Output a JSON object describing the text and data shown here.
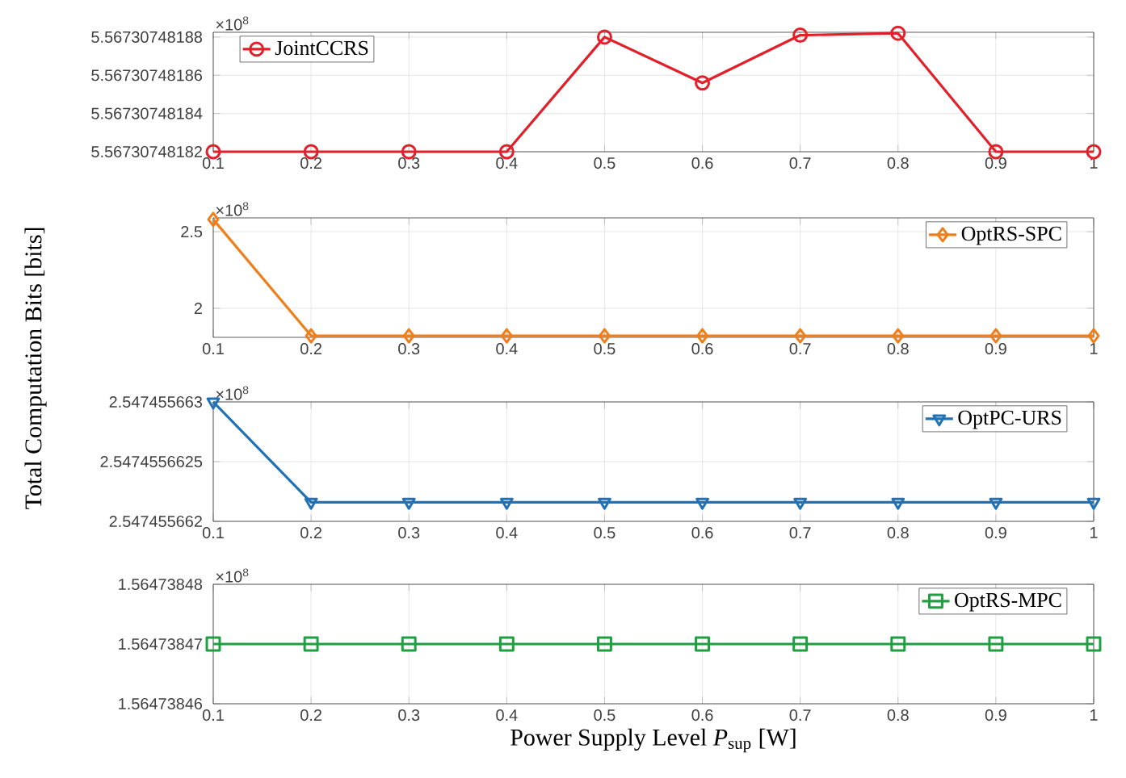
{
  "chart_data": [
    {
      "type": "line",
      "x": [
        0.1,
        0.2,
        0.3,
        0.4,
        0.5,
        0.6,
        0.7,
        0.8,
        0.9,
        1
      ],
      "ylabel": "Total Computation Bits [bits]",
      "series": [
        {
          "name": "JointCCRS",
          "color": "#e3202a",
          "values": [
            5.56730748182,
            5.56730748182,
            5.56730748182,
            5.56730748182,
            5.56730748188,
            5.567307481856,
            5.567307481881,
            5.567307481882,
            5.56730748182,
            5.56730748182
          ]
        }
      ],
      "marker": "circle",
      "xlim": [
        0.1,
        1
      ],
      "xticks": [
        0.1,
        0.2,
        0.3,
        0.4,
        0.5,
        0.6,
        0.7,
        0.8,
        0.9,
        1
      ],
      "ylim": [
        5.56730748182,
        5.5673074818825
      ],
      "yticks": [
        5.56730748182,
        5.56730748184,
        5.56730748186,
        5.56730748188
      ],
      "annotations": [
        "×10$^{8}$"
      ],
      "grid": true,
      "legend": "top left"
    },
    {
      "type": "line",
      "x": [
        0.1,
        0.2,
        0.3,
        0.4,
        0.5,
        0.6,
        0.7,
        0.8,
        0.9,
        1
      ],
      "series": [
        {
          "name": "OptRS-SPC",
          "color": "#f07f1a",
          "values": [
            2.58,
            1.82,
            1.82,
            1.82,
            1.82,
            1.82,
            1.82,
            1.82,
            1.82,
            1.82
          ]
        }
      ],
      "marker": "diamond",
      "xlim": [
        0.1,
        1
      ],
      "xticks": [
        0.1,
        0.2,
        0.3,
        0.4,
        0.5,
        0.6,
        0.7,
        0.8,
        0.9,
        1
      ],
      "ylim": [
        1.81,
        2.59
      ],
      "yticks": [
        2,
        2.5
      ],
      "annotations": [
        "×10$^{8}$"
      ],
      "grid": true,
      "legend": "top right"
    },
    {
      "type": "line",
      "x": [
        0.1,
        0.2,
        0.3,
        0.4,
        0.5,
        0.6,
        0.7,
        0.8,
        0.9,
        1
      ],
      "series": [
        {
          "name": "OptPC-URS",
          "color": "#1f72b8",
          "values": [
            2.547455663,
            2.54745566216,
            2.54745566216,
            2.54745566216,
            2.54745566216,
            2.54745566216,
            2.54745566216,
            2.54745566216,
            2.54745566216,
            2.54745566216
          ]
        }
      ],
      "marker": "triangle",
      "xlim": [
        0.1,
        1
      ],
      "xticks": [
        0.1,
        0.2,
        0.3,
        0.4,
        0.5,
        0.6,
        0.7,
        0.8,
        0.9,
        1
      ],
      "ylim": [
        2.547455662,
        2.547455663
      ],
      "yticks": [
        2.547455662,
        2.5474556625,
        2.547455663
      ],
      "annotations": [
        "×10$^{8}$"
      ],
      "grid": true,
      "legend": "top right"
    },
    {
      "type": "line",
      "x": [
        0.1,
        0.2,
        0.3,
        0.4,
        0.5,
        0.6,
        0.7,
        0.8,
        0.9,
        1
      ],
      "xlabel": "Power Supply Level *P*$_{sup}$ [W]",
      "series": [
        {
          "name": "OptRS-MPC",
          "color": "#1ea040",
          "values": [
            1.56473847,
            1.56473847,
            1.56473847,
            1.56473847,
            1.56473847,
            1.56473847,
            1.56473847,
            1.56473847,
            1.56473847,
            1.56473847
          ]
        }
      ],
      "marker": "square",
      "xlim": [
        0.1,
        1
      ],
      "xticks": [
        0.1,
        0.2,
        0.3,
        0.4,
        0.5,
        0.6,
        0.7,
        0.8,
        0.9,
        1
      ],
      "ylim": [
        1.56473846,
        1.56473848
      ],
      "yticks": [
        1.56473846,
        1.56473847,
        1.56473848
      ],
      "annotations": [
        "×10$^{8}$"
      ],
      "grid": true,
      "legend": "top right"
    }
  ]
}
